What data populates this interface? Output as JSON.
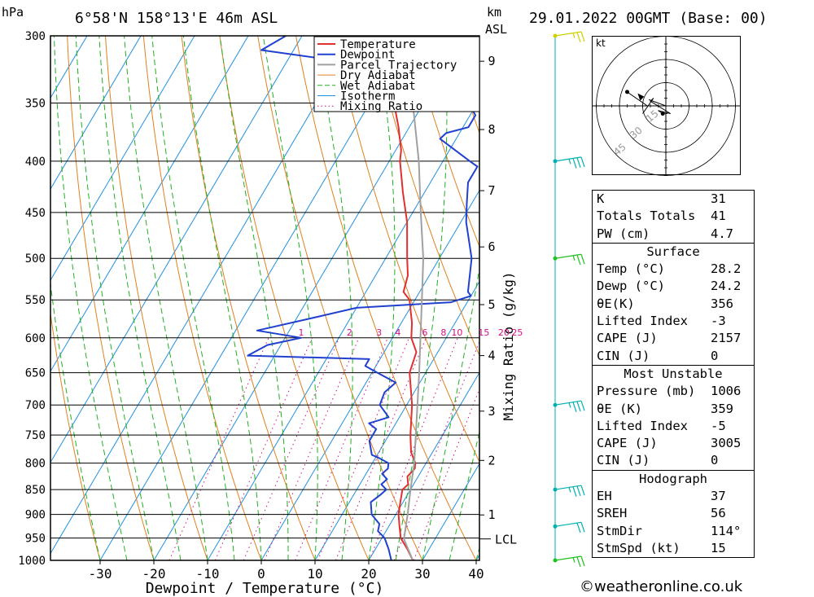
{
  "header": {
    "pressure_unit": "hPa",
    "location": "6°58'N 158°13'E 46m ASL",
    "km_unit": "km",
    "asl": "ASL",
    "datetime": "29.01.2022 00GMT (Base: 00)"
  },
  "legend": [
    "Temperature",
    "Dewpoint",
    "Parcel Trajectory",
    "Dry Adiabat",
    "Wet Adiabat",
    "Isotherm",
    "Mixing Ratio"
  ],
  "colors": {
    "temperature": "#e03030",
    "dewpoint": "#2040d0",
    "parcel": "#a0a0a0",
    "dry_adiabat": "#e08020",
    "wet_adiabat": "#20b020",
    "isotherm": "#2090e0",
    "mixing_ratio": "#d01080",
    "wind_barb": "#00b0b0"
  },
  "chart_data": {
    "type": "line",
    "xlabel": "Dewpoint / Temperature (°C)",
    "right_label": "Mixing Ratio (g/kg)",
    "x_ticks": [
      -30,
      -20,
      -10,
      0,
      10,
      20,
      30,
      40
    ],
    "pressure_ticks": [
      300,
      350,
      400,
      450,
      500,
      550,
      600,
      650,
      700,
      750,
      800,
      850,
      900,
      950,
      1000
    ],
    "pressure_range": [
      300,
      1000
    ],
    "km_ticks": [
      {
        "km": "1",
        "p": 901
      },
      {
        "km": "2",
        "p": 795
      },
      {
        "km": "3",
        "p": 710
      },
      {
        "km": "4",
        "p": 625
      },
      {
        "km": "5",
        "p": 556
      },
      {
        "km": "6",
        "p": 487
      },
      {
        "km": "7",
        "p": 428
      },
      {
        "km": "8",
        "p": 372
      },
      {
        "km": "9",
        "p": 318
      }
    ],
    "lcl": {
      "label": "LCL",
      "p": 952
    },
    "mixing_ratio_labels": [
      {
        "v": "1",
        "t": -17
      },
      {
        "v": "2",
        "t": -8
      },
      {
        "v": "3",
        "t": -2.5
      },
      {
        "v": "4",
        "t": 1
      },
      {
        "v": "6",
        "t": 6
      },
      {
        "v": "8",
        "t": 9.5
      },
      {
        "v": "10",
        "t": 12
      },
      {
        "v": "15",
        "t": 17
      },
      {
        "v": "20",
        "t": 20.7
      },
      {
        "v": "25",
        "t": 23.2
      }
    ],
    "mixing_ratio_label_p": 600,
    "series": [
      {
        "name": "Temperature",
        "points": [
          [
            1000,
            28.2
          ],
          [
            975,
            26
          ],
          [
            950,
            23.5
          ],
          [
            925,
            22
          ],
          [
            900,
            20.5
          ],
          [
            875,
            19.5
          ],
          [
            850,
            18.5
          ],
          [
            840,
            19
          ],
          [
            825,
            18
          ],
          [
            810,
            18.5
          ],
          [
            800,
            18
          ],
          [
            780,
            16
          ],
          [
            750,
            14
          ],
          [
            700,
            11
          ],
          [
            650,
            7
          ],
          [
            620,
            6
          ],
          [
            600,
            3.5
          ],
          [
            580,
            2
          ],
          [
            550,
            -1
          ],
          [
            540,
            -3
          ],
          [
            520,
            -4
          ],
          [
            500,
            -6
          ],
          [
            460,
            -10
          ],
          [
            430,
            -14
          ],
          [
            400,
            -18
          ],
          [
            390,
            -19
          ],
          [
            370,
            -22
          ],
          [
            350,
            -25.5
          ],
          [
            330,
            -29
          ],
          [
            300,
            -34
          ]
        ]
      },
      {
        "name": "Dewpoint",
        "points": [
          [
            1000,
            24.2
          ],
          [
            975,
            22.5
          ],
          [
            950,
            20.5
          ],
          [
            935,
            18.5
          ],
          [
            920,
            18
          ],
          [
            900,
            15.5
          ],
          [
            875,
            14
          ],
          [
            860,
            15
          ],
          [
            850,
            15.5
          ],
          [
            840,
            14
          ],
          [
            830,
            14.5
          ],
          [
            820,
            13
          ],
          [
            810,
            13.5
          ],
          [
            800,
            13
          ],
          [
            790,
            10.5
          ],
          [
            785,
            9
          ],
          [
            760,
            7
          ],
          [
            740,
            7
          ],
          [
            730,
            5
          ],
          [
            720,
            8
          ],
          [
            700,
            5
          ],
          [
            680,
            4.5
          ],
          [
            665,
            5.5
          ],
          [
            650,
            1
          ],
          [
            640,
            -2
          ],
          [
            630,
            -2
          ],
          [
            625,
            -25
          ],
          [
            610,
            -22.5
          ],
          [
            600,
            -17
          ],
          [
            590,
            -26
          ],
          [
            575,
            -18
          ],
          [
            560,
            -10
          ],
          [
            553,
            7
          ],
          [
            545,
            10
          ],
          [
            540,
            9
          ],
          [
            500,
            6
          ],
          [
            460,
            1
          ],
          [
            440,
            -1
          ],
          [
            420,
            -3
          ],
          [
            405,
            -3
          ],
          [
            400,
            -5
          ],
          [
            380,
            -13
          ],
          [
            375,
            -12.5
          ],
          [
            370,
            -9
          ],
          [
            360,
            -9
          ],
          [
            345,
            -13
          ],
          [
            330,
            -20
          ],
          [
            320,
            -36
          ],
          [
            310,
            -56
          ],
          [
            300,
            -53
          ]
        ]
      },
      {
        "name": "Parcel Trajectory",
        "points": [
          [
            1000,
            28.2
          ],
          [
            952,
            24.2
          ],
          [
            900,
            22.2
          ],
          [
            850,
            20
          ],
          [
            800,
            17.8
          ],
          [
            750,
            15
          ],
          [
            700,
            12
          ],
          [
            650,
            8.8
          ],
          [
            600,
            5.2
          ],
          [
            550,
            1.3
          ],
          [
            500,
            -3
          ],
          [
            450,
            -8.5
          ],
          [
            400,
            -14.5
          ],
          [
            350,
            -22
          ],
          [
            300,
            -30
          ]
        ]
      }
    ]
  },
  "hodograph": {
    "unit": "kt",
    "ring_labels": [
      "15",
      "30",
      "45"
    ],
    "trace": [
      [
        -2,
        -5
      ],
      [
        -5,
        -3
      ],
      [
        3,
        -5
      ],
      [
        -10,
        3
      ],
      [
        -8,
        5
      ],
      [
        -15,
        -5
      ]
    ]
  },
  "winds": [
    {
      "p": 1000,
      "spd": 15,
      "color": "#20c020"
    },
    {
      "p": 925,
      "spd": 20,
      "color": "#00b0b0"
    },
    {
      "p": 850,
      "spd": 25,
      "color": "#00b0b0"
    },
    {
      "p": 700,
      "spd": 25,
      "color": "#00b0b0"
    },
    {
      "p": 500,
      "spd": 15,
      "color": "#20c020"
    },
    {
      "p": 400,
      "spd": 25,
      "color": "#00b0b0"
    },
    {
      "p": 300,
      "spd": 15,
      "color": "#d0d000"
    }
  ],
  "indices": {
    "top": [
      {
        "k": "K",
        "v": "31"
      },
      {
        "k": "Totals Totals",
        "v": "41"
      },
      {
        "k": "PW (cm)",
        "v": "4.7"
      }
    ],
    "surface": {
      "title": "Surface",
      "rows": [
        {
          "k": "Temp (°C)",
          "v": "28.2"
        },
        {
          "k": "Dewp (°C)",
          "v": "24.2"
        },
        {
          "k": "θE(K)",
          "v": "356"
        },
        {
          "k": "Lifted Index",
          "v": "-3"
        },
        {
          "k": "CAPE (J)",
          "v": "2157"
        },
        {
          "k": "CIN (J)",
          "v": "0"
        }
      ]
    },
    "most_unstable": {
      "title": "Most Unstable",
      "rows": [
        {
          "k": "Pressure (mb)",
          "v": "1006"
        },
        {
          "k": "θE (K)",
          "v": "359"
        },
        {
          "k": "Lifted Index",
          "v": "-5"
        },
        {
          "k": "CAPE (J)",
          "v": "3005"
        },
        {
          "k": "CIN (J)",
          "v": "0"
        }
      ]
    },
    "hodograph": {
      "title": "Hodograph",
      "rows": [
        {
          "k": "EH",
          "v": "37"
        },
        {
          "k": "SREH",
          "v": "56"
        },
        {
          "k": "StmDir",
          "v": "114°"
        },
        {
          "k": "StmSpd (kt)",
          "v": "15"
        }
      ]
    }
  },
  "copyright": "©weatheronline.co.uk"
}
